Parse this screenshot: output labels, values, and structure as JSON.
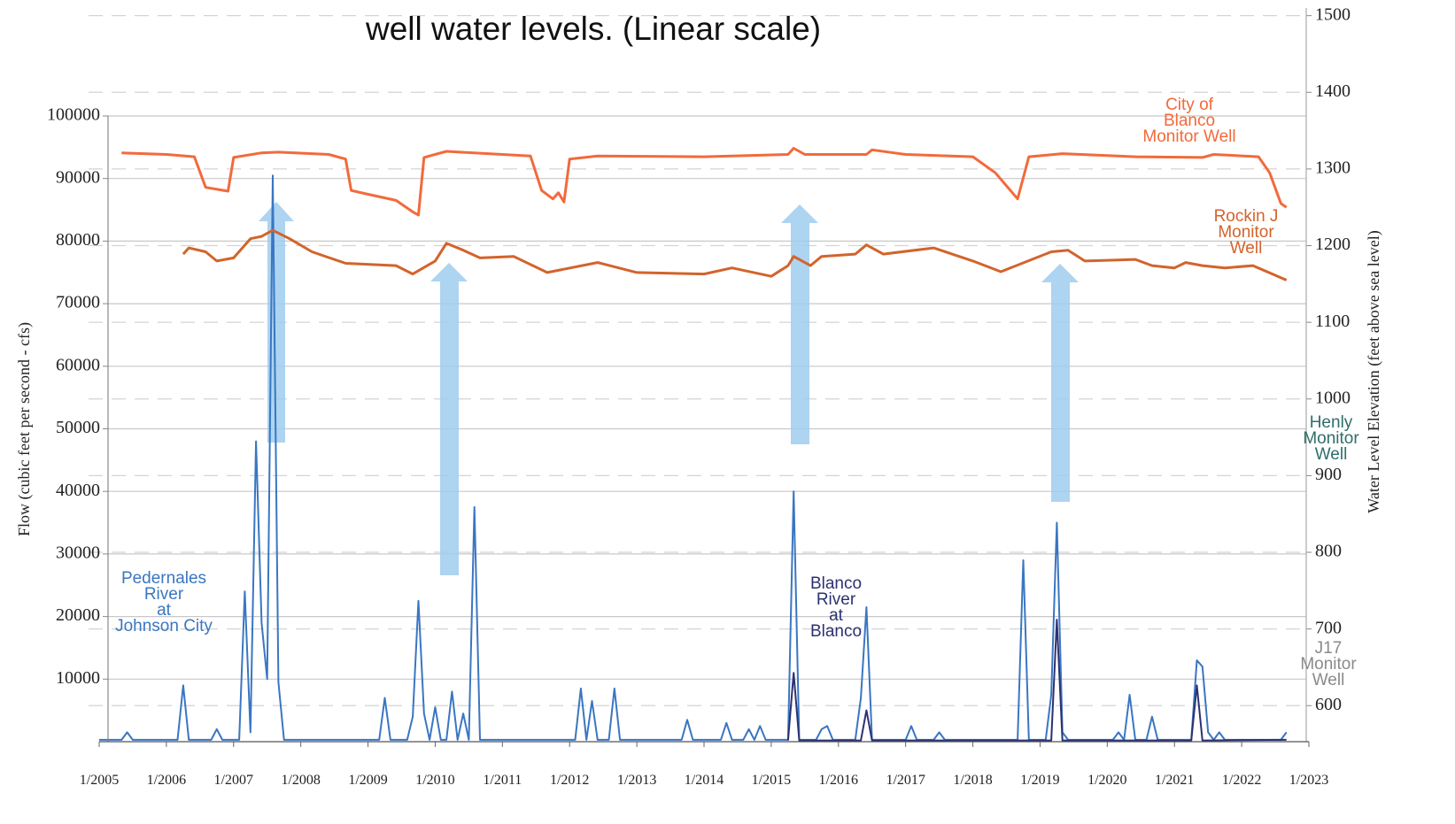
{
  "chart_data": {
    "type": "line",
    "title": "well water levels. (Linear scale)",
    "y_label": "Flow (cubic feet per second - cfs)",
    "y2_label": "Water Level Elevation (feet above sea level)",
    "xlim": [
      "2005-01",
      "2023-01"
    ],
    "xticks": [
      {
        "value": "2005-01",
        "label": "1/2005"
      },
      {
        "value": "2006-01",
        "label": "1/2006"
      },
      {
        "value": "2007-01",
        "label": "1/2007"
      },
      {
        "value": "2008-01",
        "label": "1/2008"
      },
      {
        "value": "2009-01",
        "label": "1/2009"
      },
      {
        "value": "2010-01",
        "label": "1/2010"
      },
      {
        "value": "2011-01",
        "label": "1/2011"
      },
      {
        "value": "2012-01",
        "label": "1/2012"
      },
      {
        "value": "2013-01",
        "label": "1/2013"
      },
      {
        "value": "2014-01",
        "label": "1/2014"
      },
      {
        "value": "2015-01",
        "label": "1/2015"
      },
      {
        "value": "2016-01",
        "label": "1/2016"
      },
      {
        "value": "2017-01",
        "label": "1/2017"
      },
      {
        "value": "2018-01",
        "label": "1/2018"
      },
      {
        "value": "2019-01",
        "label": "1/2019"
      },
      {
        "value": "2020-01",
        "label": "1/2020"
      },
      {
        "value": "2021-01",
        "label": "1/2021"
      },
      {
        "value": "2022-01",
        "label": "1/2022"
      },
      {
        "value": "2023-01",
        "label": "1/2023"
      }
    ],
    "ylim": [
      0,
      100000
    ],
    "yticks": [
      10000,
      20000,
      30000,
      40000,
      50000,
      60000,
      70000,
      80000,
      90000,
      100000
    ],
    "y2lim": [
      553,
      1510
    ],
    "y2ticks": [
      600,
      700,
      800,
      900,
      1000,
      1100,
      1200,
      1300,
      1400,
      1500
    ],
    "grid": true,
    "annotations": [
      {
        "text": "Henly\nMonitor\nWell",
        "color": "#2f6f6a"
      },
      {
        "text": "J17\nMonitor\nWell",
        "color": "#8a8a8a"
      }
    ],
    "series": [
      {
        "name": "Pedernales\nRiver\nat\nJohnson City",
        "color": "#3a76c2",
        "x": [
          "2005-01",
          "2005-05",
          "2005-06",
          "2005-07",
          "2006-03",
          "2006-04",
          "2006-05",
          "2006-09",
          "2006-10",
          "2006-11",
          "2007-02",
          "2007-03",
          "2007-04",
          "2007-05",
          "2007-06",
          "2007-07",
          "2007-08",
          "2007-09",
          "2007-10",
          "2009-03",
          "2009-04",
          "2009-05",
          "2009-08",
          "2009-09",
          "2009-10",
          "2009-11",
          "2009-12",
          "2010-01",
          "2010-02",
          "2010-03",
          "2010-04",
          "2010-05",
          "2010-06",
          "2010-07",
          "2010-08",
          "2010-09",
          "2012-02",
          "2012-03",
          "2012-04",
          "2012-05",
          "2012-06",
          "2012-08",
          "2012-09",
          "2012-10",
          "2013-09",
          "2013-10",
          "2013-11",
          "2014-04",
          "2014-05",
          "2014-06",
          "2014-08",
          "2014-09",
          "2014-10",
          "2014-11",
          "2014-12",
          "2015-04",
          "2015-05",
          "2015-06",
          "2015-09",
          "2015-10",
          "2015-11",
          "2015-12",
          "2016-04",
          "2016-05",
          "2016-06",
          "2016-07",
          "2017-01",
          "2017-02",
          "2017-03",
          "2017-06",
          "2017-07",
          "2017-08",
          "2018-09",
          "2018-10",
          "2018-11",
          "2019-02",
          "2019-03",
          "2019-04",
          "2019-05",
          "2019-06",
          "2020-02",
          "2020-03",
          "2020-04",
          "2020-05",
          "2020-06",
          "2020-08",
          "2020-09",
          "2020-10",
          "2021-04",
          "2021-05",
          "2021-06",
          "2021-07",
          "2021-08",
          "2021-09",
          "2021-10",
          "2022-08",
          "2022-09"
        ],
        "values": [
          300,
          300,
          1500,
          300,
          300,
          9000,
          300,
          300,
          2000,
          300,
          300,
          24000,
          1500,
          48000,
          19000,
          10000,
          90500,
          9500,
          300,
          300,
          7000,
          300,
          300,
          4000,
          22500,
          4500,
          300,
          5500,
          300,
          300,
          8000,
          300,
          4500,
          300,
          37500,
          300,
          300,
          8500,
          300,
          6500,
          300,
          300,
          8500,
          300,
          300,
          3500,
          300,
          300,
          3000,
          300,
          300,
          2000,
          300,
          2500,
          300,
          300,
          40000,
          300,
          300,
          2000,
          2500,
          300,
          300,
          7000,
          21500,
          300,
          300,
          2500,
          300,
          300,
          1500,
          300,
          300,
          29000,
          300,
          300,
          7500,
          35000,
          1500,
          300,
          300,
          1500,
          300,
          7500,
          300,
          300,
          4000,
          300,
          300,
          13000,
          12000,
          1500,
          300,
          1500,
          300,
          300,
          1500
        ]
      },
      {
        "name": "Blanco\nRiver\nat\nBlanco",
        "color": "#2c3272",
        "x": [
          "2015-04",
          "2015-05",
          "2015-06",
          "2016-05",
          "2016-06",
          "2016-07",
          "2019-03",
          "2019-04",
          "2019-05",
          "2021-04",
          "2021-05",
          "2021-06",
          "2022-09"
        ],
        "values": [
          200,
          11000,
          200,
          200,
          5000,
          200,
          200,
          19500,
          200,
          200,
          9000,
          200,
          300
        ]
      },
      {
        "name": "City of\nBlanco\nMonitor Well",
        "color": "#f26a3b",
        "axis": "y2",
        "x": [
          "2005-05",
          "2006-01",
          "2006-06",
          "2006-08",
          "2006-12",
          "2007-01",
          "2007-06",
          "2007-09",
          "2008-06",
          "2008-09",
          "2008-10",
          "2009-01",
          "2009-06",
          "2009-09",
          "2009-10",
          "2009-11",
          "2010-03",
          "2011-06",
          "2011-08",
          "2011-10",
          "2011-11",
          "2011-12",
          "2012-01",
          "2012-06",
          "2014-01",
          "2015-04",
          "2015-05",
          "2015-07",
          "2016-06",
          "2016-07",
          "2017-01",
          "2018-01",
          "2018-05",
          "2018-09",
          "2018-11",
          "2019-05",
          "2020-06",
          "2021-06",
          "2021-08",
          "2022-04",
          "2022-06",
          "2022-08",
          "2022-09"
        ],
        "values": [
          1321,
          1319,
          1316,
          1276,
          1271,
          1315,
          1321,
          1322,
          1319,
          1313,
          1272,
          1267,
          1259,
          1244,
          1240,
          1315,
          1323,
          1317,
          1272,
          1261,
          1269,
          1257,
          1313,
          1317,
          1316,
          1319,
          1327,
          1319,
          1319,
          1325,
          1319,
          1316,
          1295,
          1261,
          1316,
          1320,
          1316,
          1315,
          1319,
          1316,
          1295,
          1255,
          1250
        ]
      },
      {
        "name": "Rockin J\nMonitor\nWell",
        "color": "#d2642c",
        "axis": "y2",
        "x": [
          "2006-04",
          "2006-05",
          "2006-08",
          "2006-10",
          "2007-01",
          "2007-04",
          "2007-06",
          "2007-08",
          "2007-11",
          "2008-03",
          "2008-09",
          "2009-06",
          "2009-09",
          "2010-01",
          "2010-03",
          "2010-06",
          "2010-09",
          "2011-03",
          "2011-09",
          "2012-06",
          "2013-01",
          "2014-01",
          "2014-06",
          "2015-01",
          "2015-04",
          "2015-05",
          "2015-08",
          "2015-10",
          "2016-04",
          "2016-06",
          "2016-09",
          "2017-06",
          "2018-01",
          "2018-06",
          "2019-03",
          "2019-06",
          "2019-09",
          "2020-06",
          "2020-09",
          "2021-01",
          "2021-03",
          "2021-06",
          "2021-10",
          "2022-03",
          "2022-09"
        ],
        "values": [
          1189,
          1197,
          1192,
          1180,
          1184,
          1209,
          1212,
          1220,
          1209,
          1192,
          1177,
          1174,
          1163,
          1180,
          1203,
          1194,
          1184,
          1186,
          1165,
          1178,
          1165,
          1163,
          1171,
          1160,
          1174,
          1186,
          1174,
          1186,
          1189,
          1201,
          1189,
          1197,
          1180,
          1166,
          1192,
          1194,
          1180,
          1182,
          1174,
          1171,
          1178,
          1174,
          1171,
          1174,
          1155
        ]
      }
    ]
  }
}
